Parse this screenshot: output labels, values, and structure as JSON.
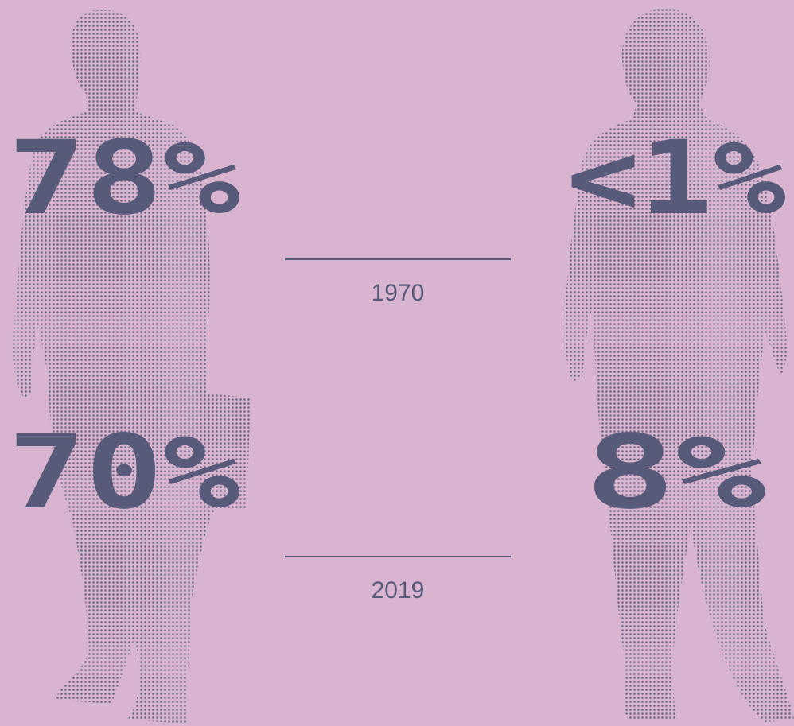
{
  "rows": [
    {
      "left": "78%",
      "right": "<1%",
      "year": "1970"
    },
    {
      "left": "70%",
      "right": "8%",
      "year": "2019"
    }
  ]
}
